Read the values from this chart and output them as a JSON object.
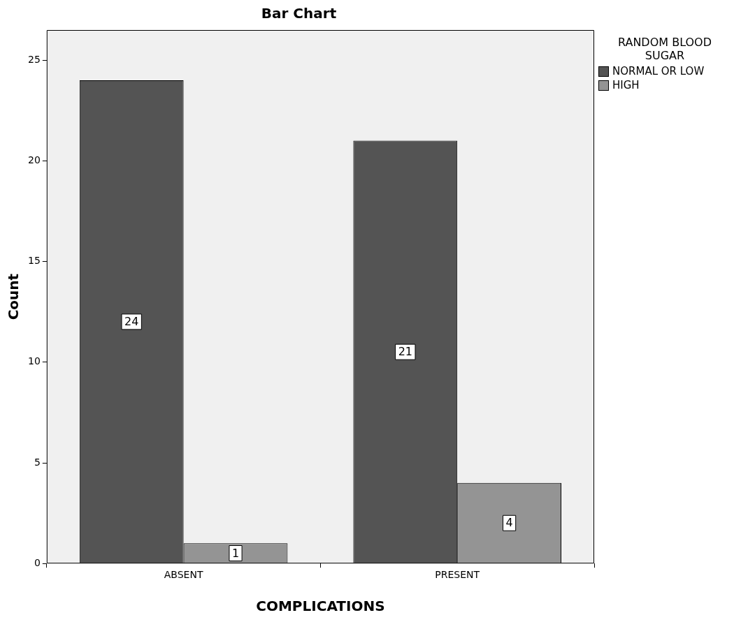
{
  "chart_data": {
    "type": "bar",
    "title": "Bar Chart",
    "xlabel": "COMPLICATIONS",
    "ylabel": "Count",
    "legend_title": "RANDOM BLOOD SUGAR",
    "categories": [
      "ABSENT",
      "PRESENT"
    ],
    "series": [
      {
        "name": "NORMAL OR LOW",
        "color": "#545454",
        "values": [
          24,
          21
        ]
      },
      {
        "name": "HIGH",
        "color": "#949494",
        "values": [
          1,
          4
        ]
      }
    ],
    "ylim": [
      0,
      26.5
    ],
    "yticks": [
      0,
      5,
      10,
      15,
      20,
      25
    ],
    "grid": false,
    "legend": "top right",
    "data_labels": true
  }
}
